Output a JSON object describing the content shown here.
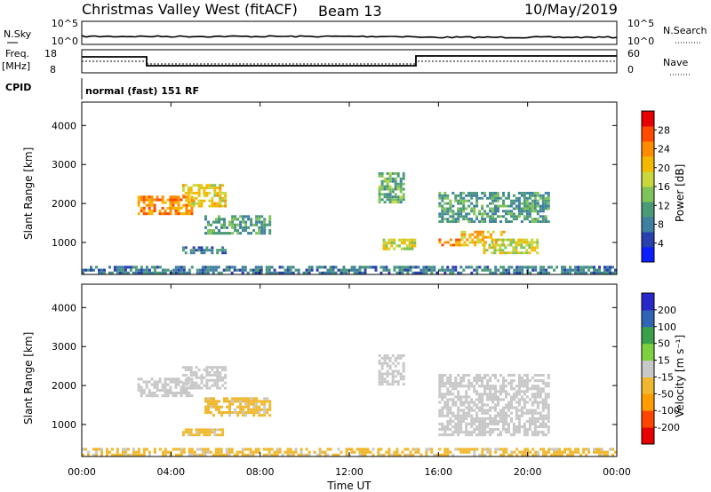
{
  "header": {
    "station": "Christmas Valley West (fitACF)",
    "beam": "Beam 13",
    "date": "10/May/2019"
  },
  "strips": {
    "nsky_label": "N.Sky",
    "nsky_ticks": [
      "10^5",
      "10^0"
    ],
    "nsearch_label": "N.Search",
    "nsearch_ticks": [
      "10^5",
      "10^0"
    ],
    "freq_label": "Freq.",
    "freq_unit": "[MHz]",
    "freq_ticks": [
      "18",
      "8"
    ],
    "nave_label": "Nave",
    "nave_ticks": [
      "60",
      "0"
    ],
    "cpid_label": "CPID",
    "cpid_text": "normal (fast) 151 RF"
  },
  "time_axis": {
    "label": "Time UT",
    "ticks": [
      "00:00",
      "04:00",
      "08:00",
      "12:00",
      "16:00",
      "20:00",
      "00:00"
    ]
  },
  "colors": {
    "power": [
      "#0a1eff",
      "#2840b0",
      "#3f7fa0",
      "#4a9a78",
      "#7fc35a",
      "#c8d83c",
      "#f5b800",
      "#ff8c00",
      "#ff4a00",
      "#e60000"
    ],
    "velocity": [
      "#e60000",
      "#ff4400",
      "#ff9c00",
      "#f0b830",
      "#c8c8c8",
      "#7fd040",
      "#3aa04a",
      "#3064b4",
      "#2828c8"
    ]
  },
  "chart_data": [
    {
      "type": "heatmap",
      "title": "Power",
      "ylabel": "Slant Range [km]",
      "xlabel": "",
      "x_range_hours": [
        0,
        24
      ],
      "ylim": [
        180,
        4600
      ],
      "yticks": [
        "4000",
        "3000",
        "2000",
        "1000"
      ],
      "colorbar": {
        "label": "Power [dB]",
        "ticks": [
          "28",
          "24",
          "20",
          "16",
          "12",
          "8",
          "4"
        ],
        "range": [
          0,
          30
        ]
      },
      "echo_regions": [
        {
          "t0": 2.5,
          "t1": 5.0,
          "r0": 1700,
          "r1": 2200,
          "value_dB": 22
        },
        {
          "t0": 4.5,
          "t1": 6.5,
          "r0": 1900,
          "r1": 2500,
          "value_dB": 18
        },
        {
          "t0": 5.5,
          "t1": 8.5,
          "r0": 1200,
          "r1": 1700,
          "value_dB": 10
        },
        {
          "t0": 4.5,
          "t1": 6.5,
          "r0": 700,
          "r1": 900,
          "value_dB": 8
        },
        {
          "t0": 13.3,
          "t1": 14.5,
          "r0": 2000,
          "r1": 2800,
          "value_dB": 12
        },
        {
          "t0": 13.5,
          "t1": 15.0,
          "r0": 800,
          "r1": 1100,
          "value_dB": 16
        },
        {
          "t0": 16.0,
          "t1": 17.0,
          "r0": 900,
          "r1": 1100,
          "value_dB": 22
        },
        {
          "t0": 17.0,
          "t1": 19.0,
          "r0": 900,
          "r1": 1300,
          "value_dB": 20
        },
        {
          "t0": 18.0,
          "t1": 20.5,
          "r0": 700,
          "r1": 1100,
          "value_dB": 16
        },
        {
          "t0": 16.0,
          "t1": 21.0,
          "r0": 1500,
          "r1": 2300,
          "value_dB": 10
        },
        {
          "t0": 0.0,
          "t1": 24.0,
          "r0": 180,
          "r1": 400,
          "value_dB": 8
        }
      ]
    },
    {
      "type": "heatmap",
      "title": "Velocity",
      "ylabel": "Slant Range [km]",
      "xlabel": "Time UT",
      "x_range_hours": [
        0,
        24
      ],
      "ylim": [
        180,
        4600
      ],
      "yticks": [
        "4000",
        "3000",
        "2000",
        "1000"
      ],
      "colorbar": {
        "label": "Velocity [m s⁻¹]",
        "ticks": [
          "200",
          "100",
          "50",
          "15",
          "-15",
          "-50",
          "-100",
          "-200"
        ],
        "range": [
          -250,
          250
        ]
      },
      "echo_regions": [
        {
          "t0": 2.5,
          "t1": 5.0,
          "r0": 1700,
          "r1": 2200,
          "value_ms": 0
        },
        {
          "t0": 4.5,
          "t1": 6.5,
          "r0": 1900,
          "r1": 2500,
          "value_ms": 0
        },
        {
          "t0": 5.5,
          "t1": 8.5,
          "r0": 1200,
          "r1": 1700,
          "value_ms": -40
        },
        {
          "t0": 4.5,
          "t1": 6.5,
          "r0": 700,
          "r1": 900,
          "value_ms": -40
        },
        {
          "t0": 13.3,
          "t1": 14.5,
          "r0": 2000,
          "r1": 2800,
          "value_ms": 0
        },
        {
          "t0": 16.0,
          "t1": 21.0,
          "r0": 700,
          "r1": 2300,
          "value_ms": 0
        },
        {
          "t0": 0.0,
          "t1": 24.0,
          "r0": 180,
          "r1": 400,
          "value_ms": -40
        }
      ]
    }
  ]
}
